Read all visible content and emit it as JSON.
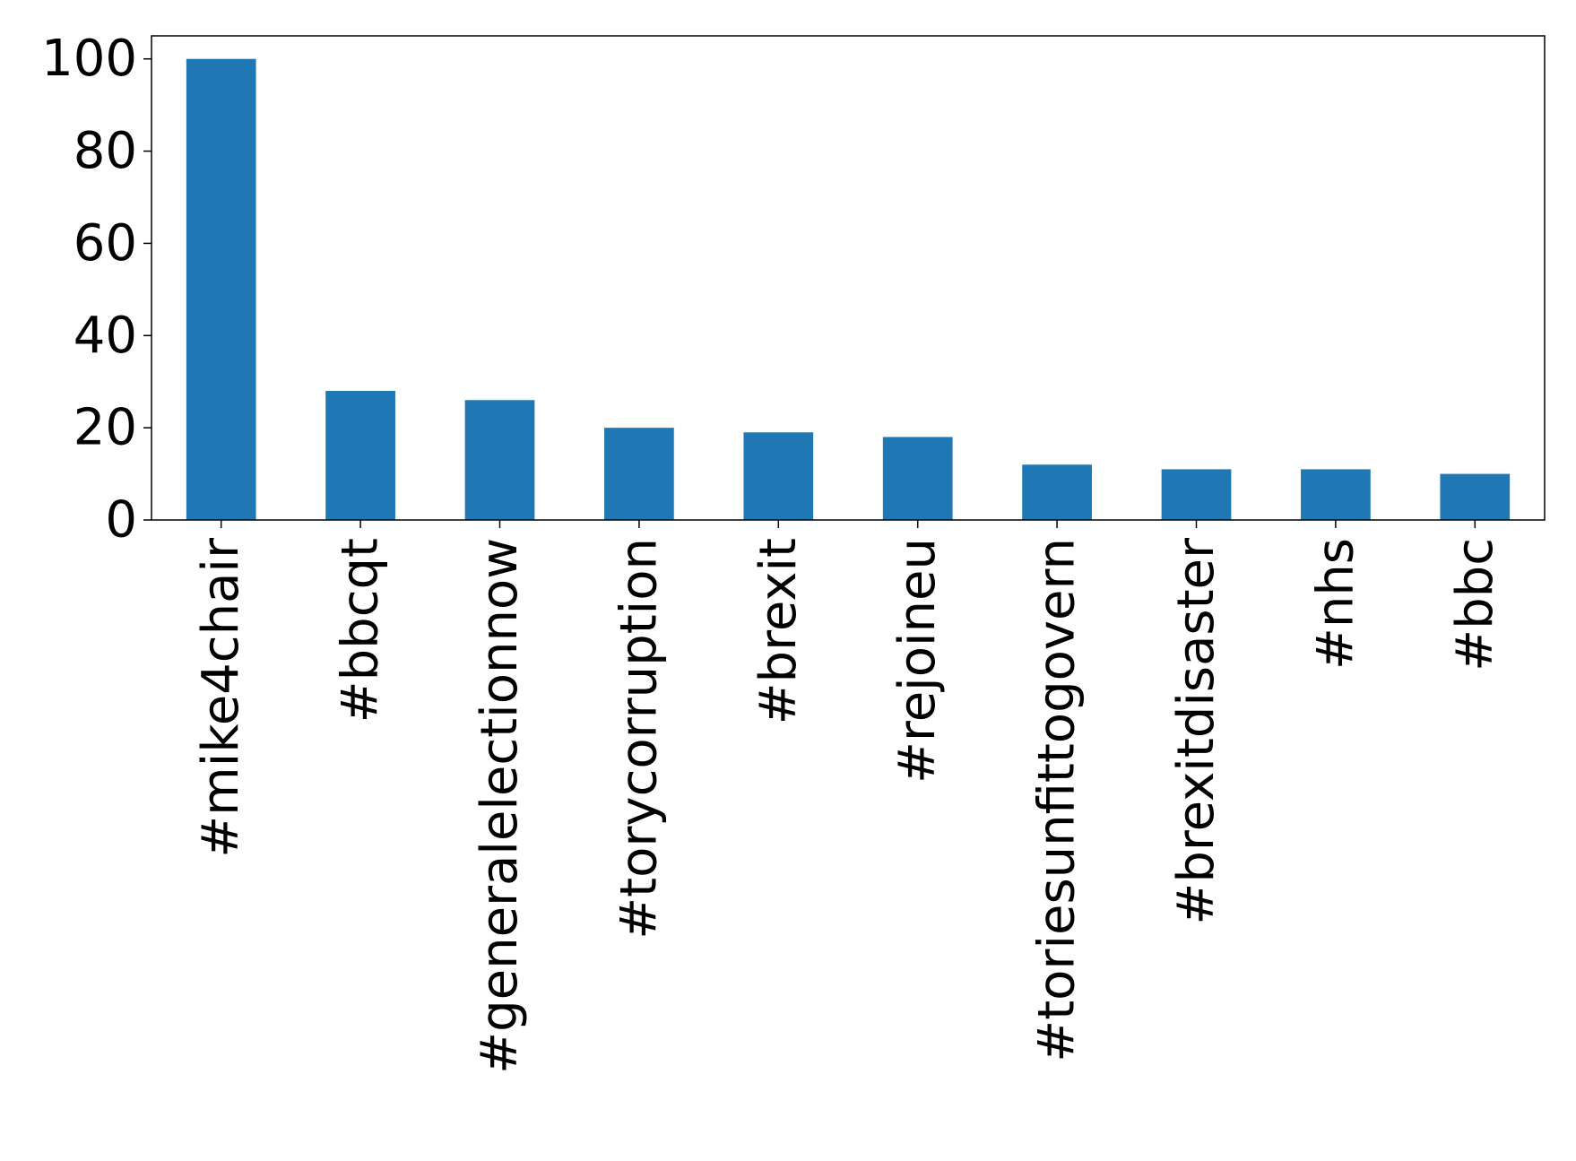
{
  "chart_data": {
    "type": "bar",
    "title": "",
    "xlabel": "",
    "ylabel": "",
    "categories": [
      "#mike4chair",
      "#bbcqt",
      "#generalelectionnow",
      "#torycorruption",
      "#brexit",
      "#rejoineu",
      "#toriesunfittogovern",
      "#brexitdisaster",
      "#nhs",
      "#bbc"
    ],
    "values": [
      100,
      28,
      26,
      20,
      19,
      18,
      12,
      11,
      11,
      10
    ],
    "ylim": [
      0,
      105
    ],
    "yticks": [
      0,
      20,
      40,
      60,
      80,
      100
    ],
    "grid": false,
    "legend": "none",
    "bar_color": "#1f77b4"
  }
}
